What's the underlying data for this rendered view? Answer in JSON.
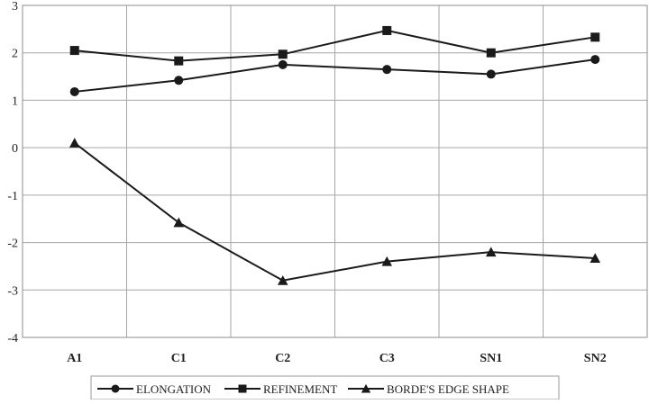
{
  "chart_data": {
    "type": "line",
    "title": "",
    "xlabel": "",
    "ylabel": "",
    "categories": [
      "A1",
      "C1",
      "C2",
      "C3",
      "SN1",
      "SN2"
    ],
    "ylim": [
      -4,
      3
    ],
    "yticks": [
      "3",
      "2",
      "1",
      "0",
      "-1",
      "-2",
      "-3",
      "-4"
    ],
    "grid": true,
    "legend_position": "bottom",
    "series": [
      {
        "name": "ELONGATION",
        "marker": "circle",
        "color": "#1a1a1a",
        "values": [
          1.18,
          1.42,
          1.75,
          1.65,
          1.55,
          1.86
        ]
      },
      {
        "name": "REFINEMENT",
        "marker": "square",
        "color": "#1a1a1a",
        "values": [
          2.05,
          1.83,
          1.97,
          2.47,
          2.0,
          2.33
        ]
      },
      {
        "name": "BORDE'S EDGE SHAPE",
        "marker": "triangle",
        "color": "#1a1a1a",
        "values": [
          0.1,
          -1.58,
          -2.8,
          -2.4,
          -2.2,
          -2.33
        ]
      }
    ]
  }
}
